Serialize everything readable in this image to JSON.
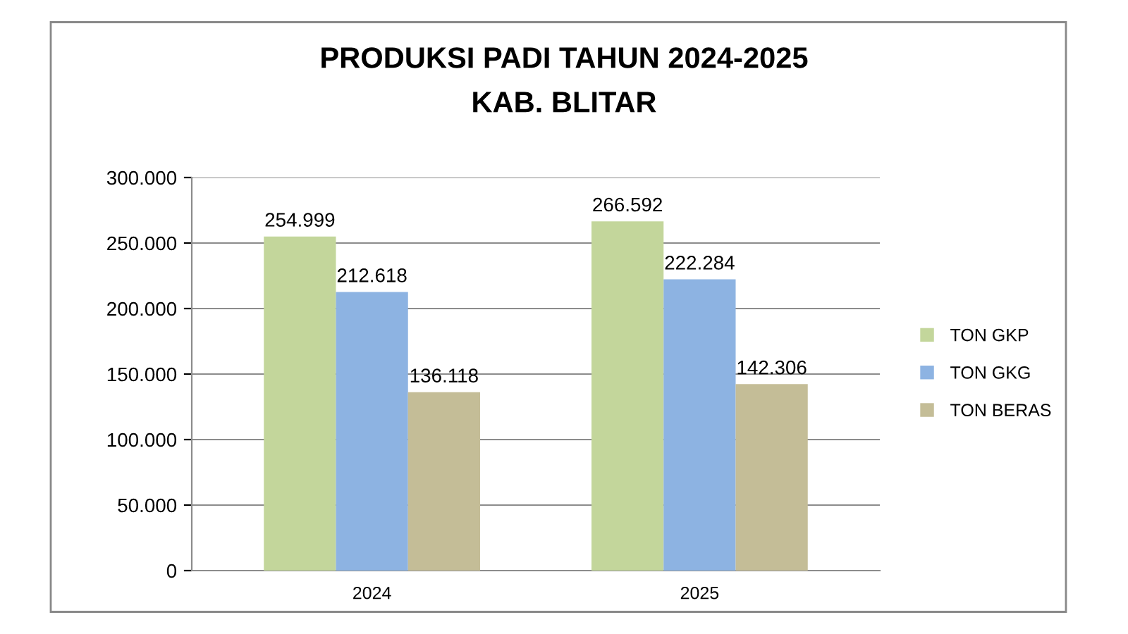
{
  "chart_data": {
    "type": "bar",
    "title": "PRODUKSI PADI TAHUN 2024-2025",
    "subtitle": "KAB. BLITAR",
    "categories": [
      "2024",
      "2025"
    ],
    "series": [
      {
        "name": "TON GKP",
        "color": "#c3d69b",
        "values": [
          254999,
          266592
        ],
        "value_labels": [
          "254.999",
          "266.592"
        ]
      },
      {
        "name": "TON GKG",
        "color": "#8db3e2",
        "values": [
          212618,
          222284
        ],
        "value_labels": [
          "212.618",
          "222.284"
        ]
      },
      {
        "name": "TON BERAS",
        "color": "#c4bd97",
        "values": [
          136118,
          142306
        ],
        "value_labels": [
          "136.118",
          "142.306"
        ]
      }
    ],
    "ylim": [
      0,
      300000
    ],
    "yticks": [
      {
        "value": 0,
        "label": "0"
      },
      {
        "value": 50000,
        "label": "50.000"
      },
      {
        "value": 100000,
        "label": "100.000"
      },
      {
        "value": 150000,
        "label": "150.000"
      },
      {
        "value": 200000,
        "label": "200.000"
      },
      {
        "value": 250000,
        "label": "250.000"
      },
      {
        "value": 300000,
        "label": "300.000"
      }
    ],
    "grid": "y",
    "legend": "right"
  }
}
